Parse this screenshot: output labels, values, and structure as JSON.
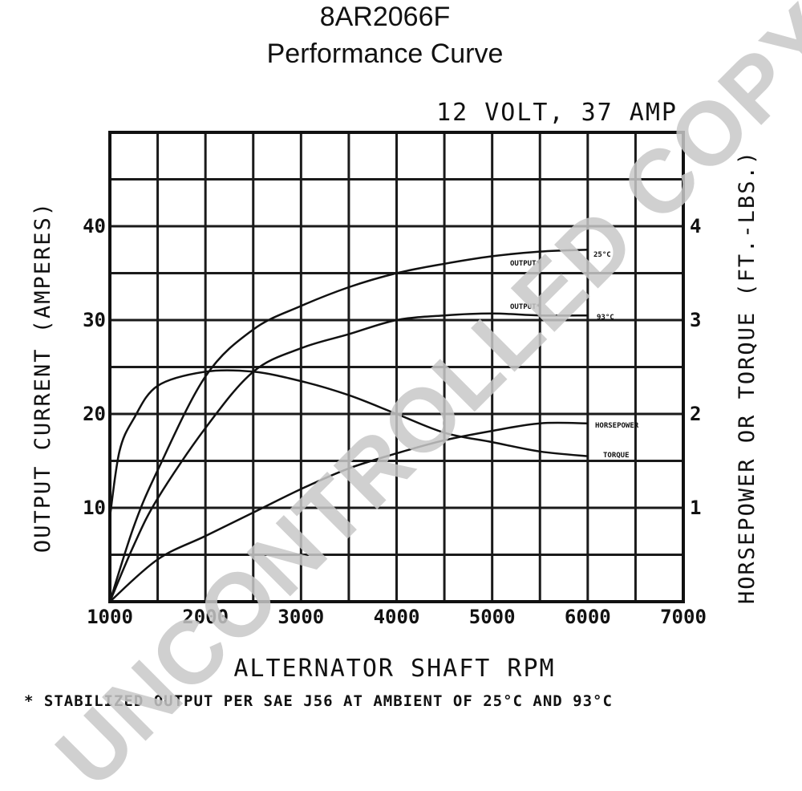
{
  "header": {
    "model": "8AR2066F",
    "subtitle": "Performance Curve"
  },
  "chart_data": {
    "type": "line",
    "title": "12 VOLT, 37 AMP",
    "xlabel": "ALTERNATOR SHAFT RPM",
    "ylabel_left": "OUTPUT CURRENT (AMPERES)",
    "ylabel_right": "HORSEPOWER OR TORQUE (FT.-LBS.)",
    "xlim": [
      1000,
      7000
    ],
    "ylim_left": [
      0,
      50
    ],
    "ylim_right": [
      0,
      5
    ],
    "x_ticks": [
      "1000",
      "2000",
      "3000",
      "4000",
      "5000",
      "6000",
      "7000"
    ],
    "y_ticks_left": [
      "10",
      "20",
      "30",
      "40"
    ],
    "y_ticks_right": [
      "1",
      "2",
      "3",
      "4"
    ],
    "grid": true,
    "series": [
      {
        "name": "OUTPUT* 25°C",
        "axis": "left",
        "points": [
          [
            1000,
            0
          ],
          [
            1250,
            8
          ],
          [
            1500,
            14
          ],
          [
            2000,
            24
          ],
          [
            2500,
            29
          ],
          [
            3000,
            31.5
          ],
          [
            3500,
            33.5
          ],
          [
            4000,
            35
          ],
          [
            4500,
            36
          ],
          [
            5000,
            36.8
          ],
          [
            5500,
            37.3
          ],
          [
            6000,
            37.5
          ]
        ]
      },
      {
        "name": "OUTPUT* 93°C",
        "axis": "left",
        "points": [
          [
            1000,
            0
          ],
          [
            1250,
            6
          ],
          [
            1500,
            11
          ],
          [
            2000,
            18.5
          ],
          [
            2500,
            24.5
          ],
          [
            3000,
            27
          ],
          [
            3500,
            28.5
          ],
          [
            4000,
            30
          ],
          [
            4500,
            30.5
          ],
          [
            5000,
            30.7
          ],
          [
            5500,
            30.5
          ],
          [
            6000,
            30.5
          ]
        ]
      },
      {
        "name": "HORSEPOWER",
        "axis": "right",
        "points": [
          [
            1000,
            0
          ],
          [
            1500,
            0.45
          ],
          [
            2000,
            0.7
          ],
          [
            2500,
            0.95
          ],
          [
            3000,
            1.2
          ],
          [
            3500,
            1.42
          ],
          [
            4000,
            1.58
          ],
          [
            4500,
            1.72
          ],
          [
            5000,
            1.82
          ],
          [
            5500,
            1.9
          ],
          [
            6000,
            1.9
          ]
        ]
      },
      {
        "name": "TORQUE",
        "axis": "right",
        "points": [
          [
            1000,
            0.9
          ],
          [
            1100,
            1.6
          ],
          [
            1250,
            1.95
          ],
          [
            1500,
            2.3
          ],
          [
            2000,
            2.45
          ],
          [
            2500,
            2.45
          ],
          [
            3000,
            2.35
          ],
          [
            3500,
            2.2
          ],
          [
            4000,
            2.0
          ],
          [
            4500,
            1.8
          ],
          [
            5000,
            1.7
          ],
          [
            5500,
            1.6
          ],
          [
            6000,
            1.55
          ]
        ]
      }
    ],
    "curve_labels": {
      "output_25": "OUTPUT*",
      "output_25_temp": "25°C",
      "output_93": "OUTPUT*",
      "output_93_temp": "93°C",
      "horsepower": "HORSEPOWER",
      "torque": "TORQUE"
    },
    "footnote": "* STABILIZED OUTPUT PER SAE J56 AT AMBIENT OF 25°C AND 93°C"
  },
  "watermark": "UNCONTROLLED COPY"
}
